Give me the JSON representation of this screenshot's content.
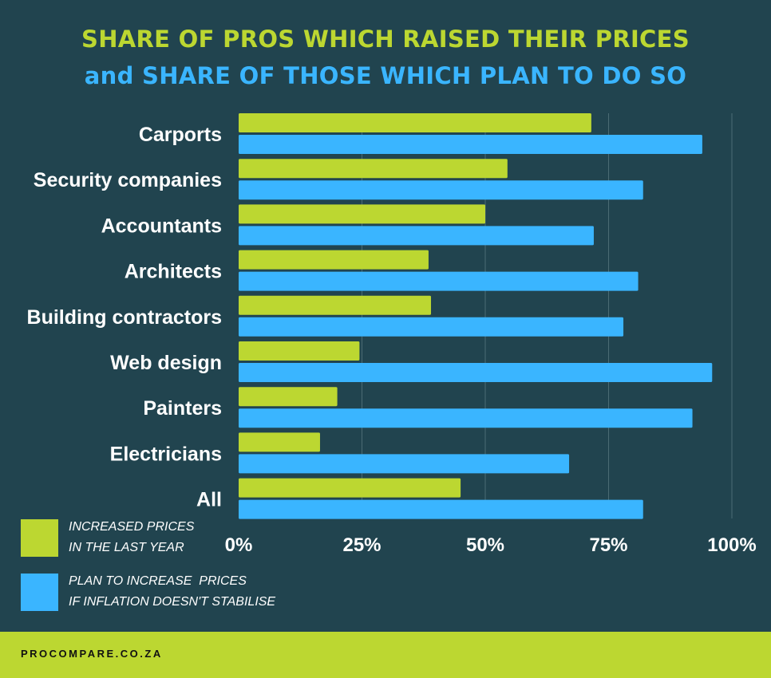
{
  "chart_data": {
    "type": "bar",
    "orientation": "horizontal",
    "title": "SHARE OF PROS WHICH RAISED THEIR PRICES",
    "subtitle": "and SHARE OF THOSE WHICH PLAN TO DO SO",
    "categories": [
      "Carports",
      "Security companies",
      "Accountants",
      "Architects",
      "Building contractors",
      "Web design",
      "Painters",
      "Electricians",
      "All"
    ],
    "series": [
      {
        "name": "INCREASED PRICES IN THE LAST YEAR",
        "name_lines": [
          "INCREASED PRICES",
          "IN THE LAST YEAR"
        ],
        "color": "#bcd731",
        "values": [
          71.5,
          54.5,
          50,
          38.5,
          39,
          24.5,
          20,
          16.5,
          45
        ]
      },
      {
        "name": "PLAN TO INCREASE PRICES IF INFLATION DOESN'T STABILISE",
        "name_lines": [
          "PLAN TO INCREASE  PRICES",
          "IF INFLATION DOESN'T STABILISE"
        ],
        "color": "#3ab5ff",
        "values": [
          94,
          82,
          72,
          81,
          78,
          96,
          92,
          67,
          82
        ]
      }
    ],
    "xlim": [
      0,
      100
    ],
    "xticks": [
      "0%",
      "25%",
      "50%",
      "75%",
      "100%"
    ],
    "grid": true,
    "legend_position": "bottom-left"
  },
  "footer": {
    "brand": "PROCOMPARE.CO.ZA"
  },
  "colors": {
    "background": "#21444f",
    "green": "#bcd731",
    "blue": "#3ab5ff"
  }
}
